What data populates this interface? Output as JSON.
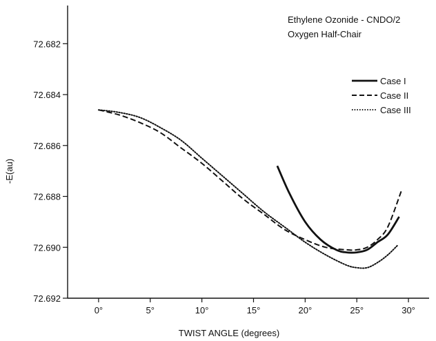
{
  "chart_data": {
    "type": "line",
    "title": "Ethylene Ozonide - CNDO/2",
    "subtitle": "Oxygen Half-Chair",
    "xlabel": "TWIST ANGLE (degrees)",
    "ylabel": "-E(au)",
    "xlim": [
      -3,
      32
    ],
    "ylim": [
      72.6805,
      72.692
    ],
    "y_inverted": true,
    "x_ticks": [
      0,
      5,
      10,
      15,
      20,
      25,
      30
    ],
    "x_tick_labels": [
      "0°",
      "5°",
      "10°",
      "15°",
      "20°",
      "25°",
      "30°"
    ],
    "y_ticks": [
      72.682,
      72.684,
      72.686,
      72.688,
      72.69,
      72.692
    ],
    "y_tick_labels": [
      "72.682",
      "72.684",
      "72.686",
      "72.688",
      "72.690",
      "72.692"
    ],
    "grid": false,
    "legend_position": "top-right",
    "series": [
      {
        "name": "Case I",
        "style": "solid",
        "x": [
          17.3,
          18.5,
          20,
          21.5,
          23,
          24,
          25,
          26,
          27,
          28,
          29.1
        ],
        "y": [
          72.6868,
          72.6879,
          72.689,
          72.6897,
          72.6901,
          72.6902,
          72.6902,
          72.6901,
          72.6898,
          72.6895,
          72.6888
        ]
      },
      {
        "name": "Case II",
        "style": "dashed",
        "x": [
          0,
          2,
          4,
          6,
          8,
          10,
          12,
          14,
          16,
          18,
          20,
          22,
          24,
          25,
          26,
          27,
          28,
          29.3
        ],
        "y": [
          72.6846,
          72.6848,
          72.6851,
          72.6855,
          72.6861,
          72.6867,
          72.6874,
          72.6881,
          72.6887,
          72.6893,
          72.6897,
          72.69,
          72.6901,
          72.6901,
          72.69,
          72.6897,
          72.6892,
          72.6878
        ]
      },
      {
        "name": "Case III",
        "style": "dotted",
        "x": [
          0,
          2,
          4,
          6,
          8,
          10,
          12,
          14,
          16,
          18,
          20,
          22,
          24,
          25,
          26,
          27,
          28,
          29
        ],
        "y": [
          72.6846,
          72.6847,
          72.6849,
          72.6853,
          72.6858,
          72.6865,
          72.6872,
          72.6879,
          72.6886,
          72.6892,
          72.6898,
          72.6903,
          72.6907,
          72.6908,
          72.6908,
          72.6906,
          72.6903,
          72.6899
        ]
      }
    ]
  }
}
